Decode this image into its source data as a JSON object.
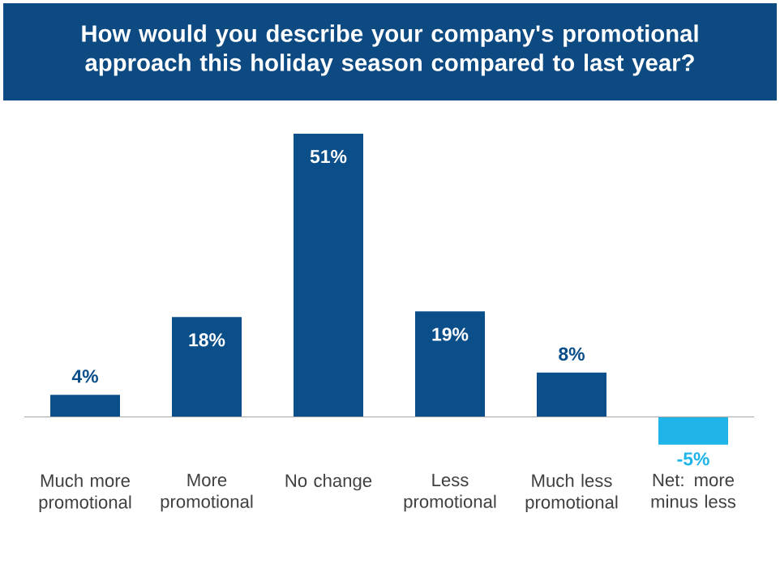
{
  "chart_data": {
    "type": "bar",
    "title": "How would you describe your company's promotional approach this holiday season compared to last year?",
    "categories": [
      "Much more promotional",
      "More promotional",
      "No change",
      "Less promotional",
      "Much less promotional",
      "Net: more minus less"
    ],
    "values": [
      4,
      18,
      51,
      19,
      8,
      -5
    ],
    "colors": [
      "#0b4f8a",
      "#0b4f8a",
      "#0b4f8a",
      "#0b4f8a",
      "#0b4f8a",
      "#1fb5e8"
    ],
    "value_labels": [
      "4%",
      "18%",
      "51%",
      "19%",
      "8%",
      "-5%"
    ]
  }
}
